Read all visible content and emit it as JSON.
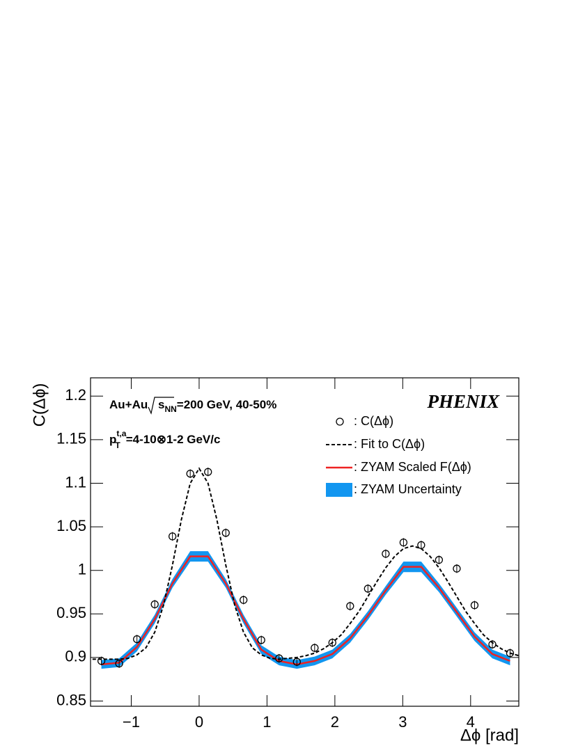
{
  "chart_data": {
    "type": "line",
    "xlabel": "Δϕ [rad]",
    "ylabel": "C(Δϕ)",
    "annotations": {
      "system": [
        "Au+Au ",
        "s",
        "NN",
        "=200 GeV, 40-50%"
      ],
      "pt": [
        "p",
        "t,a",
        "T",
        "=4-10⊗1-2 GeV/c"
      ],
      "experiment": "PHENIX"
    },
    "xlim": [
      -1.6,
      4.71
    ],
    "ylim": [
      0.844,
      1.221
    ],
    "xticks": [
      {
        "value": -1,
        "label": "−1"
      },
      0,
      1,
      2,
      3,
      4
    ],
    "yticks": [
      0.85,
      0.9,
      0.95,
      1,
      1.05,
      1.1,
      1.15,
      1.2
    ],
    "series": [
      {
        "name": ": C(Δϕ)",
        "style": "points",
        "color": "#000000",
        "x": [
          -1.44,
          -1.178,
          -0.916,
          -0.654,
          -0.393,
          -0.131,
          0.131,
          0.393,
          0.654,
          0.916,
          1.178,
          1.44,
          1.702,
          1.963,
          2.225,
          2.487,
          2.749,
          3.011,
          3.272,
          3.534,
          3.796,
          4.058,
          4.32,
          4.581
        ],
        "values": [
          0.896,
          0.893,
          0.921,
          0.961,
          1.039,
          1.111,
          1.113,
          1.043,
          0.966,
          0.92,
          0.899,
          0.895,
          0.911,
          0.917,
          0.959,
          0.979,
          1.019,
          1.032,
          1.029,
          1.012,
          1.002,
          0.96,
          0.915,
          0.905
        ],
        "errors": [
          0.005,
          0.005,
          0.005,
          0.005,
          0.005,
          0.005,
          0.005,
          0.005,
          0.005,
          0.005,
          0.005,
          0.005,
          0.005,
          0.005,
          0.005,
          0.005,
          0.005,
          0.005,
          0.005,
          0.005,
          0.005,
          0.005,
          0.005,
          0.005
        ]
      },
      {
        "name": ": Fit to C(Δϕ)",
        "style": "dashed",
        "color": "#000000",
        "x": [
          -1.571,
          -1.44,
          -1.309,
          -1.178,
          -1.047,
          -0.916,
          -0.785,
          -0.654,
          -0.524,
          -0.393,
          -0.262,
          -0.131,
          0,
          0.131,
          0.262,
          0.393,
          0.524,
          0.654,
          0.785,
          0.916,
          1.047,
          1.178,
          1.309,
          1.44,
          1.571,
          1.702,
          1.833,
          1.963,
          2.094,
          2.225,
          2.356,
          2.487,
          2.618,
          2.749,
          2.88,
          3.011,
          3.142,
          3.272,
          3.403,
          3.534,
          3.665,
          3.796,
          3.927,
          4.058,
          4.189,
          4.32,
          4.451,
          4.581,
          4.712
        ],
        "values": [
          0.898,
          0.898,
          0.898,
          0.898,
          0.899,
          0.903,
          0.911,
          0.929,
          0.96,
          1.006,
          1.058,
          1.1,
          1.117,
          1.1,
          1.058,
          1.006,
          0.96,
          0.929,
          0.911,
          0.903,
          0.899,
          0.898,
          0.899,
          0.9,
          0.902,
          0.905,
          0.91,
          0.917,
          0.926,
          0.939,
          0.953,
          0.97,
          0.987,
          1.003,
          1.016,
          1.025,
          1.028,
          1.025,
          1.016,
          1.003,
          0.987,
          0.97,
          0.953,
          0.939,
          0.926,
          0.917,
          0.91,
          0.905,
          0.902
        ]
      },
      {
        "name": ": ZYAM Scaled F(Δϕ)",
        "style": "solid",
        "color": "#ee2222",
        "x": [
          -1.44,
          -1.178,
          -0.916,
          -0.654,
          -0.393,
          -0.131,
          0.131,
          0.393,
          0.654,
          0.916,
          1.178,
          1.44,
          1.702,
          1.963,
          2.225,
          2.487,
          2.749,
          3.011,
          3.272,
          3.534,
          3.796,
          4.058,
          4.32,
          4.581
        ],
        "values": [
          0.892,
          0.894,
          0.912,
          0.944,
          0.985,
          1.016,
          1.016,
          0.985,
          0.944,
          0.909,
          0.896,
          0.892,
          0.896,
          0.904,
          0.922,
          0.948,
          0.977,
          1.004,
          1.004,
          0.98,
          0.952,
          0.924,
          0.904,
          0.896
        ]
      },
      {
        "name": ": ZYAM Uncertainty",
        "style": "band",
        "color": "#1296f0",
        "x": [
          -1.44,
          -1.178,
          -0.916,
          -0.654,
          -0.393,
          -0.131,
          0.131,
          0.393,
          0.654,
          0.916,
          1.178,
          1.44,
          1.702,
          1.963,
          2.225,
          2.487,
          2.749,
          3.011,
          3.272,
          3.534,
          3.796,
          4.058,
          4.32,
          4.581
        ],
        "values": [
          0.892,
          0.894,
          0.912,
          0.944,
          0.985,
          1.016,
          1.016,
          0.985,
          0.944,
          0.909,
          0.896,
          0.892,
          0.896,
          0.904,
          0.922,
          0.948,
          0.977,
          1.004,
          1.004,
          0.98,
          0.952,
          0.924,
          0.904,
          0.896
        ],
        "errors": [
          0.005,
          0.005,
          0.005,
          0.005,
          0.005,
          0.006,
          0.006,
          0.005,
          0.005,
          0.005,
          0.005,
          0.005,
          0.005,
          0.005,
          0.005,
          0.005,
          0.005,
          0.006,
          0.006,
          0.005,
          0.005,
          0.005,
          0.005,
          0.005
        ]
      }
    ]
  }
}
